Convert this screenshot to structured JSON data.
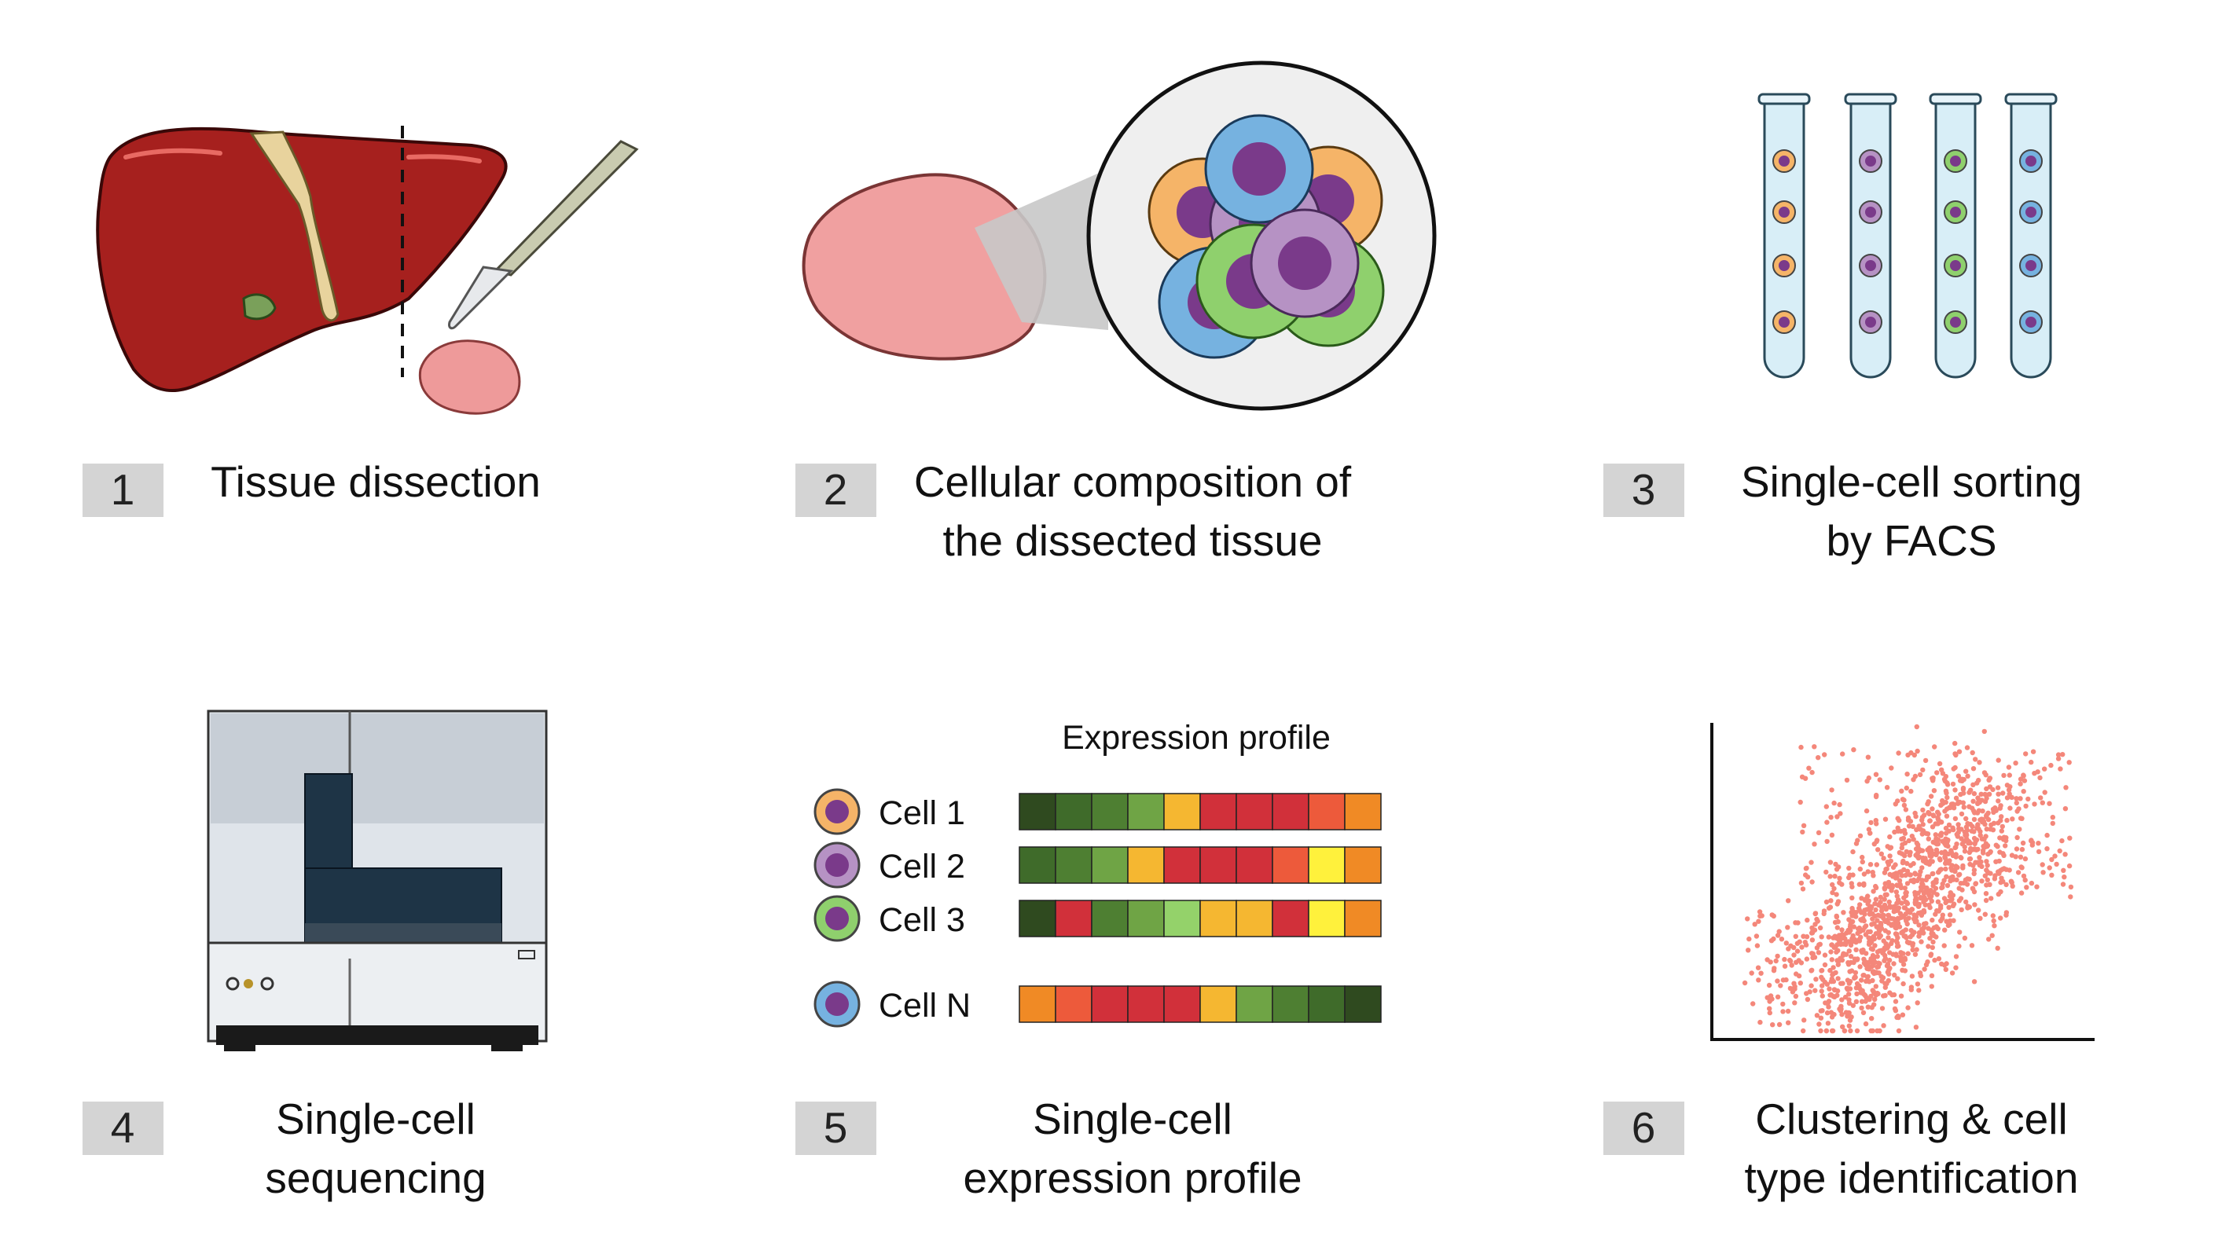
{
  "steps": [
    {
      "number": "1",
      "lines": [
        "Tissue dissection"
      ]
    },
    {
      "number": "2",
      "lines": [
        "Cellular composition of",
        "the dissected tissue"
      ]
    },
    {
      "number": "3",
      "lines": [
        "Single-cell sorting",
        "by FACS"
      ]
    },
    {
      "number": "4",
      "lines": [
        "Single-cell",
        "sequencing"
      ]
    },
    {
      "number": "5",
      "lines": [
        "Single-cell",
        "expression profile"
      ]
    },
    {
      "number": "6",
      "lines": [
        "Clustering & cell",
        "type identification"
      ]
    }
  ],
  "expression": {
    "title": "Expression profile",
    "cells": [
      {
        "label": "Cell 1",
        "ring": "#f5b468",
        "colors": [
          "#2f4a1f",
          "#3f6b2a",
          "#4e7f32",
          "#6fa445",
          "#f5b731",
          "#d1303a",
          "#d1303a",
          "#d1303a",
          "#ed5a3b",
          "#f08a25"
        ]
      },
      {
        "label": "Cell 2",
        "ring": "#b692c4",
        "colors": [
          "#3f6b2a",
          "#4e7f32",
          "#6fa445",
          "#f5b731",
          "#d1303a",
          "#d1303a",
          "#d1303a",
          "#ed5a3b",
          "#fff13c",
          "#f08a25"
        ]
      },
      {
        "label": "Cell 3",
        "ring": "#8fd06d",
        "colors": [
          "#2f4a1f",
          "#d1303a",
          "#4e7f32",
          "#6fa445",
          "#94d26a",
          "#f5b731",
          "#f5b731",
          "#d1303a",
          "#fff13c",
          "#f08a25"
        ]
      },
      {
        "label": "Cell N",
        "ring": "#76b2e0",
        "colors": [
          "#f08a25",
          "#ed5a3b",
          "#d1303a",
          "#d1303a",
          "#d1303a",
          "#f5b731",
          "#6fa445",
          "#4e7f32",
          "#3f6b2a",
          "#2f4a1f"
        ]
      }
    ]
  },
  "tubes": {
    "colors": [
      "#f5b468",
      "#b692c4",
      "#8fd06d",
      "#76b2e0"
    ]
  },
  "cluster": {
    "point_color": "#f4877a"
  }
}
